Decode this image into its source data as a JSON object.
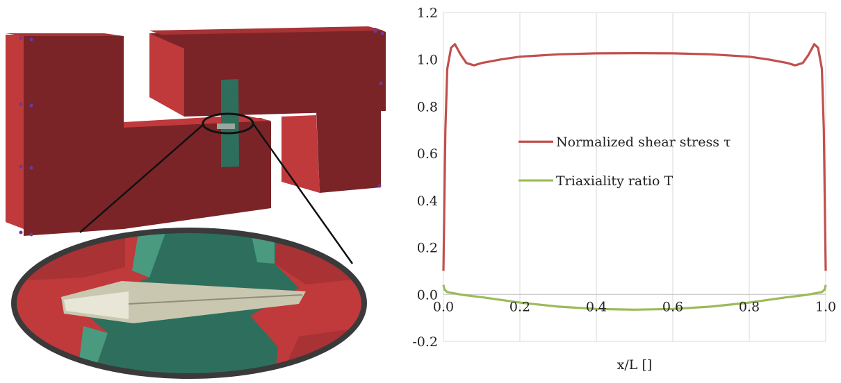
{
  "chart_data": {
    "type": "line",
    "xlabel": "x/L []",
    "ylabel": "",
    "xlim": [
      0.0,
      1.0
    ],
    "ylim": [
      -0.2,
      1.2
    ],
    "x_ticks": [
      "0.0",
      "0.2",
      "0.4",
      "0.6",
      "0.8",
      "1.0"
    ],
    "y_ticks": [
      "-0.2",
      "0.0",
      "0.2",
      "0.4",
      "0.6",
      "0.8",
      "1.0",
      "1.2"
    ],
    "x_tick_values": [
      0.0,
      0.2,
      0.4,
      0.6,
      0.8,
      1.0
    ],
    "y_tick_values": [
      -0.2,
      0.0,
      0.2,
      0.4,
      0.6,
      0.8,
      1.0,
      1.2
    ],
    "grid": "vertical",
    "legend_position": "center",
    "series": [
      {
        "name": "Normalized shear stress τ",
        "color": "#c0504d",
        "x": [
          0.0,
          0.005,
          0.01,
          0.02,
          0.03,
          0.045,
          0.06,
          0.08,
          0.1,
          0.15,
          0.2,
          0.3,
          0.4,
          0.5,
          0.6,
          0.7,
          0.8,
          0.85,
          0.9,
          0.92,
          0.94,
          0.955,
          0.97,
          0.98,
          0.99,
          0.995,
          1.0
        ],
        "values": [
          0.1,
          0.7,
          0.96,
          1.05,
          1.065,
          1.02,
          0.985,
          0.975,
          0.985,
          1.0,
          1.012,
          1.022,
          1.026,
          1.027,
          1.026,
          1.022,
          1.012,
          1.0,
          0.985,
          0.975,
          0.985,
          1.02,
          1.065,
          1.05,
          0.96,
          0.7,
          0.1
        ]
      },
      {
        "name": "Triaxiality ratio T",
        "color": "#9bbb59",
        "x": [
          0.0,
          0.003,
          0.01,
          0.05,
          0.1,
          0.2,
          0.3,
          0.4,
          0.5,
          0.6,
          0.7,
          0.8,
          0.9,
          0.95,
          0.99,
          0.997,
          1.0
        ],
        "values": [
          0.04,
          0.02,
          0.01,
          -0.002,
          -0.012,
          -0.035,
          -0.052,
          -0.062,
          -0.065,
          -0.062,
          -0.052,
          -0.035,
          -0.012,
          -0.002,
          0.01,
          0.02,
          0.04
        ]
      }
    ]
  },
  "figure_left": {
    "colors": {
      "red_face": "#7a2427",
      "red_light": "#c0393b",
      "teal_face": "#2e6e5c",
      "teal_light": "#4a9a80",
      "ellipse_border": "#3a3a3a"
    }
  }
}
